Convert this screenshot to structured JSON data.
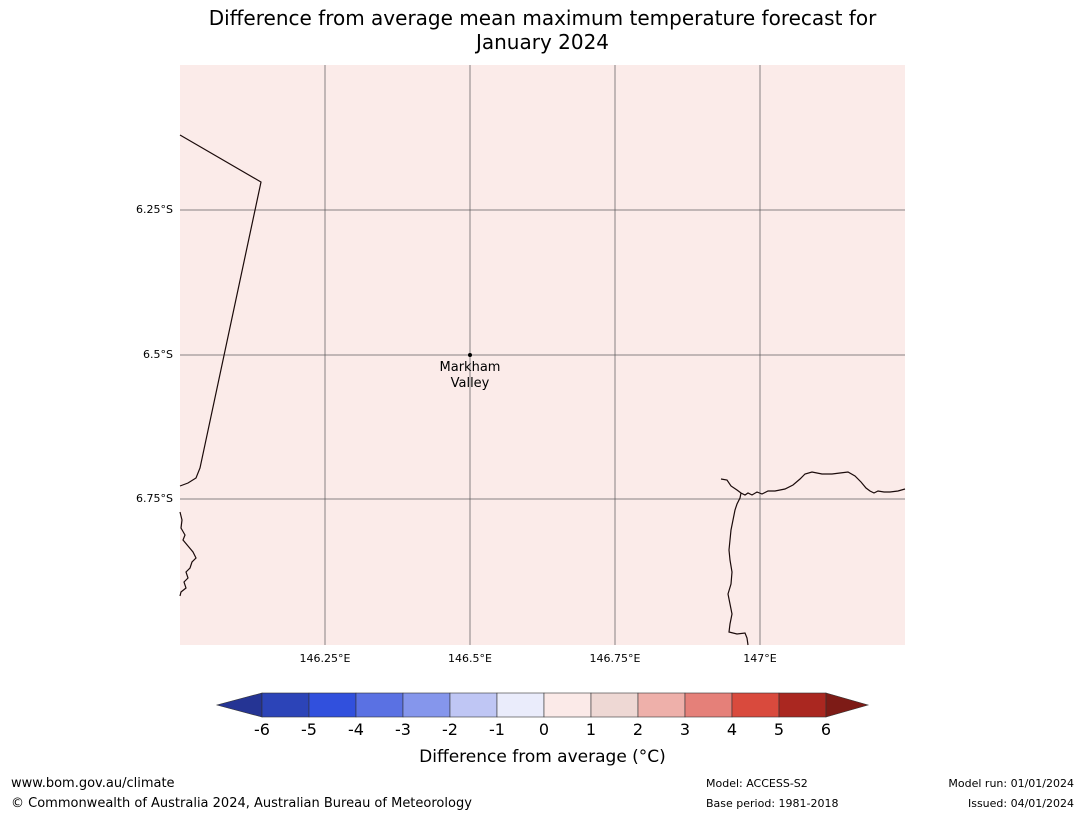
{
  "title_line1": "Difference from average mean maximum temperature forecast for",
  "title_line2": "January 2024",
  "map": {
    "background_color": "#fbebe9",
    "lat_labels": [
      "6.25°S",
      "6.5°S",
      "6.75°S"
    ],
    "lon_labels": [
      "146.25°E",
      "146.5°E",
      "146.75°E",
      "147°E"
    ],
    "place": {
      "line1": "Markham",
      "line2": "Valley"
    }
  },
  "colorbar": {
    "ticks": [
      "-6",
      "-5",
      "-4",
      "-3",
      "-2",
      "-1",
      "0",
      "1",
      "2",
      "3",
      "4",
      "5",
      "6"
    ],
    "colors": [
      "#253494",
      "#2c44b8",
      "#3150dd",
      "#5a71e3",
      "#8596ec",
      "#bfc6f4",
      "#eaecfb",
      "#fbeae8",
      "#eed8d4",
      "#eeb0aa",
      "#e58079",
      "#d94a3d",
      "#aa2720",
      "#7d1b16"
    ],
    "label": "Difference from average (°C)"
  },
  "footer": {
    "url": "www.bom.gov.au/climate",
    "copyright": "© Commonwealth of Australia 2024, Australian Bureau of Meteorology",
    "model": "Model: ACCESS-S2",
    "base_period": "Base period: 1981-2018",
    "model_run": "Model run: 01/01/2024",
    "issued": "Issued: 04/01/2024"
  }
}
